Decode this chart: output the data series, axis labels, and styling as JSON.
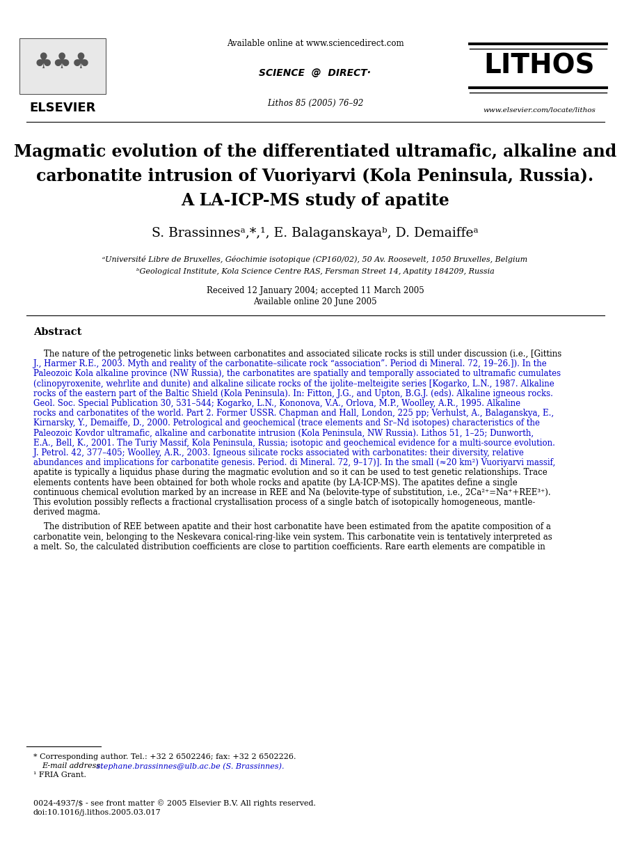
{
  "bg_color": "#ffffff",
  "header_available_text": "Available online at www.sciencedirect.com",
  "header_journal_text": "Lithos 85 (2005) 76–92",
  "journal_name": "LITHOS",
  "journal_url": "www.elsevier.com/locate/lithos",
  "title_line1": "Magmatic evolution of the differentiated ultramafic, alkaline and",
  "title_line2": "carbonatite intrusion of Vuoriyarvi (Kola Peninsula, Russia).",
  "title_line3": "A LA-ICP-MS study of apatite",
  "authors": "S. Brassinnesᵃ,*,¹, E. Balaganskayaᵇ, D. Demaiffeᵃ",
  "affil_a": "ᵃUniversité Libre de Bruxelles, Géochimie isotopique (CP160/02), 50 Av. Roosevelt, 1050 Bruxelles, Belgium",
  "affil_b": "ᵇGeological Institute, Kola Science Centre RAS, Fersman Street 14, Apatity 184209, Russia",
  "received": "Received 12 January 2004; accepted 11 March 2005",
  "available_online": "Available online 20 June 2005",
  "abstract_title": "Abstract",
  "footnote_star": "* Corresponding author. Tel.: +32 2 6502246; fax: +32 2 6502226.",
  "footnote_email_label": "E-mail address:",
  "footnote_email": "stephane.brassinnes@ulb.ac.be (S. Brassinnes).",
  "footnote_1": "¹ FRIA Grant.",
  "copyright": "0024-4937/$ - see front matter © 2005 Elsevier B.V. All rights reserved.",
  "doi": "doi:10.1016/j.lithos.2005.03.017",
  "p1_lines": [
    "    The nature of the petrogenetic links between carbonatites and associated silicate rocks is still under discussion (i.e., [Gittins",
    "J., Harmer R.E., 2003. Myth and reality of the carbonatite–silicate rock “association”. Period di Mineral. 72, 19–26.]). In the",
    "Paleozoic Kola alkaline province (NW Russia), the carbonatites are spatially and temporally associated to ultramafic cumulates",
    "(clinopyroxenite, wehrlite and dunite) and alkaline silicate rocks of the ijolite–melteigite series [Kogarko, L.N., 1987. Alkaline",
    "rocks of the eastern part of the Baltic Shield (Kola Peninsula). In: Fitton, J.G., and Upton, B.G.J. (eds). Alkaline igneous rocks.",
    "Geol. Soc. Special Publication 30, 531–544; Kogarko, L.N., Kononova, V.A., Orlova, M.P., Woolley, A.R., 1995. Alkaline",
    "rocks and carbonatites of the world. Part 2. Former USSR. Chapman and Hall, London, 225 pp; Verhulst, A., Balaganskya, E.,",
    "Kirnarsky, Y., Demaiffe, D., 2000. Petrological and geochemical (trace elements and Sr–Nd isotopes) characteristics of the",
    "Paleozoic Kovdor ultramafic, alkaline and carbonatite intrusion (Kola Peninsula, NW Russia). Lithos 51, 1–25; Dunworth,",
    "E.A., Bell, K., 2001. The Turiy Massif, Kola Peninsula, Russia; isotopic and geochemical evidence for a multi-source evolution.",
    "J. Petrol. 42, 377–405; Woolley, A.R., 2003. Igneous silicate rocks associated with carbonatites: their diversity, relative",
    "abundances and implications for carbonatite genesis. Period. di Mineral. 72, 9–17)]. In the small (≈20 km²) Vuoriyarvi massif,",
    "apatite is typically a liquidus phase during the magmatic evolution and so it can be used to test genetic relationships. Trace",
    "elements contents have been obtained for both whole rocks and apatite (by LA-ICP-MS). The apatites define a single",
    "continuous chemical evolution marked by an increase in REE and Na (belovite-type of substitution, i.e., 2Ca²⁺=Na⁺+REE³⁺).",
    "This evolution possibly reflects a fractional crystallisation process of a single batch of isotopically homogeneous, mantle-",
    "derived magma."
  ],
  "p1_blue": [
    1,
    2,
    3,
    4,
    5,
    6,
    7,
    8,
    9,
    10,
    11
  ],
  "p2_lines": [
    "    The distribution of REE between apatite and their host carbonatite have been estimated from the apatite composition of a",
    "carbonatite vein, belonging to the Neskevara conical-ring-like vein system. This carbonatite vein is tentatively interpreted as",
    "a melt. So, the calculated distribution coefficients are close to partition coefficients. Rare earth elements are compatible in"
  ]
}
